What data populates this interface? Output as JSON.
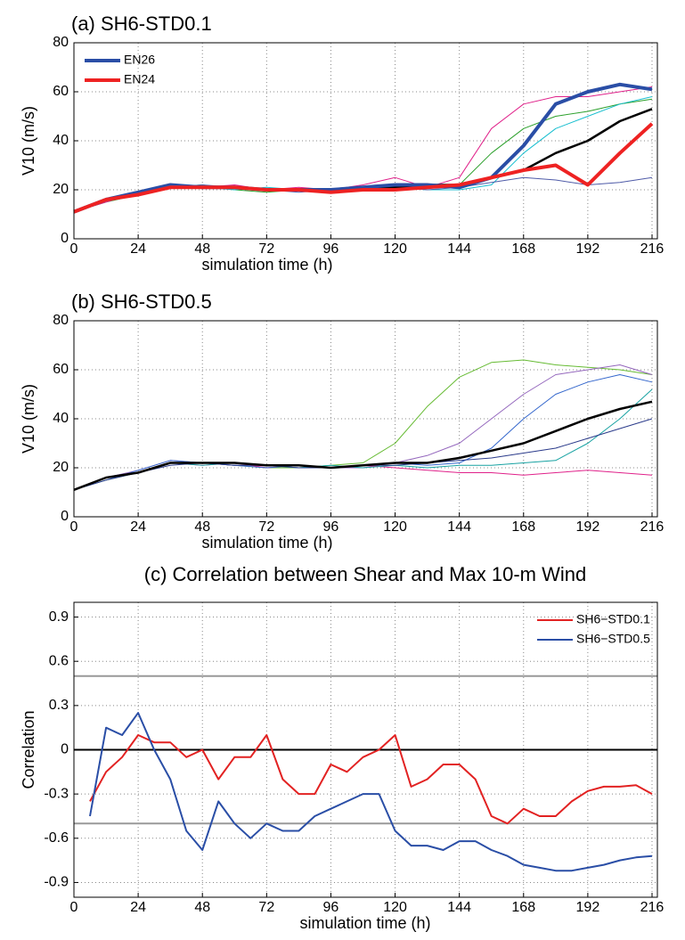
{
  "chart_data": [
    {
      "type": "line",
      "title": "(a) SH6-STD0.1",
      "xlabel": "simulation time (h)",
      "ylabel": "V10 (m/s)",
      "x": [
        0,
        12,
        24,
        36,
        48,
        60,
        72,
        84,
        96,
        108,
        120,
        132,
        144,
        156,
        168,
        180,
        192,
        204,
        216
      ],
      "xlim": [
        0,
        218
      ],
      "xticks": [
        0,
        24,
        48,
        72,
        96,
        120,
        144,
        168,
        192,
        216
      ],
      "ylim": [
        0,
        80
      ],
      "yticks": [
        0,
        20,
        40,
        60,
        80
      ],
      "grid": true,
      "legend": "upper left",
      "series": [
        {
          "color": "#2ca02c",
          "width": 1,
          "values": [
            11,
            15,
            18,
            21,
            22,
            20,
            19,
            20,
            19,
            20,
            22,
            21,
            22,
            35,
            45,
            50,
            52,
            55,
            57
          ]
        },
        {
          "color": "#17becf",
          "width": 1,
          "values": [
            11,
            16,
            19,
            22,
            21,
            20,
            21,
            20,
            19,
            21,
            21,
            20,
            20,
            22,
            35,
            45,
            50,
            55,
            58
          ]
        },
        {
          "color": "#e0218a",
          "width": 1,
          "values": [
            11,
            15,
            19,
            22,
            21,
            22,
            20,
            21,
            20,
            22,
            25,
            21,
            25,
            45,
            55,
            58,
            58,
            60,
            62
          ]
        },
        {
          "color": "#4f5ba8",
          "width": 1,
          "values": [
            11,
            16,
            18,
            21,
            22,
            21,
            20,
            19,
            20,
            21,
            21,
            20,
            21,
            23,
            25,
            24,
            22,
            23,
            25
          ]
        },
        {
          "color": "#000000",
          "width": 2.5,
          "values": [
            11,
            16,
            19,
            22,
            21,
            21,
            20,
            20,
            20,
            21,
            21,
            22,
            22,
            25,
            28,
            35,
            40,
            48,
            53
          ]
        },
        {
          "name": "EN26",
          "color": "#2a4ea6",
          "width": 4,
          "values": [
            11,
            16,
            19,
            22,
            21,
            21,
            20,
            20,
            20,
            21,
            22,
            22,
            21,
            25,
            38,
            55,
            60,
            63,
            61
          ]
        },
        {
          "name": "EN24",
          "color": "#ee2222",
          "width": 4,
          "values": [
            11,
            16,
            18,
            21,
            21,
            21,
            20,
            20,
            19,
            20,
            20,
            21,
            22,
            25,
            28,
            30,
            22,
            35,
            47
          ]
        }
      ]
    },
    {
      "type": "line",
      "title": "(b) SH6-STD0.5",
      "xlabel": "simulation time (h)",
      "ylabel": "V10 (m/s)",
      "x": [
        0,
        12,
        24,
        36,
        48,
        60,
        72,
        84,
        96,
        108,
        120,
        132,
        144,
        156,
        168,
        180,
        192,
        204,
        216
      ],
      "xlim": [
        0,
        218
      ],
      "xticks": [
        0,
        24,
        48,
        72,
        96,
        120,
        144,
        168,
        192,
        216
      ],
      "ylim": [
        0,
        80
      ],
      "yticks": [
        0,
        20,
        40,
        60,
        80
      ],
      "grid": true,
      "series": [
        {
          "color": "#66bb33",
          "width": 1,
          "values": [
            11,
            15,
            18,
            22,
            22,
            21,
            20,
            20,
            21,
            22,
            30,
            45,
            57,
            63,
            64,
            62,
            61,
            60,
            58
          ]
        },
        {
          "color": "#9467bd",
          "width": 1,
          "values": [
            11,
            16,
            19,
            23,
            22,
            21,
            21,
            20,
            20,
            20,
            22,
            25,
            30,
            40,
            50,
            58,
            60,
            62,
            58
          ]
        },
        {
          "color": "#e0218a",
          "width": 1,
          "values": [
            11,
            16,
            18,
            22,
            21,
            22,
            20,
            21,
            20,
            21,
            20,
            19,
            18,
            18,
            17,
            18,
            19,
            18,
            17
          ]
        },
        {
          "color": "#3366cc",
          "width": 1,
          "values": [
            11,
            15,
            19,
            23,
            22,
            21,
            20,
            21,
            20,
            21,
            22,
            21,
            22,
            28,
            40,
            50,
            55,
            58,
            55
          ]
        },
        {
          "color": "#17a2a2",
          "width": 1,
          "values": [
            11,
            16,
            18,
            22,
            21,
            22,
            21,
            20,
            21,
            20,
            21,
            20,
            21,
            21,
            22,
            23,
            30,
            40,
            52
          ]
        },
        {
          "color": "#2a3a8a",
          "width": 1,
          "values": [
            11,
            15,
            18,
            21,
            22,
            21,
            21,
            20,
            20,
            21,
            21,
            22,
            23,
            24,
            26,
            28,
            32,
            36,
            40
          ]
        },
        {
          "color": "#000000",
          "width": 2.5,
          "values": [
            11,
            16,
            18,
            22,
            22,
            22,
            21,
            21,
            20,
            21,
            22,
            22,
            24,
            27,
            30,
            35,
            40,
            44,
            47
          ]
        }
      ]
    },
    {
      "type": "line",
      "title": "(c) Correlation between Shear and Max 10-m Wind",
      "xlabel": "simulation time (h)",
      "ylabel": "Correlation",
      "x": [
        6,
        12,
        18,
        24,
        30,
        36,
        42,
        48,
        54,
        60,
        66,
        72,
        78,
        84,
        90,
        96,
        102,
        108,
        114,
        120,
        126,
        132,
        138,
        144,
        150,
        156,
        162,
        168,
        174,
        180,
        186,
        192,
        198,
        204,
        210,
        216
      ],
      "xlim": [
        0,
        218
      ],
      "xticks": [
        0,
        24,
        48,
        72,
        96,
        120,
        144,
        168,
        192,
        216
      ],
      "ylim": [
        -1.0,
        1.0
      ],
      "yticks": [
        -0.9,
        -0.6,
        -0.3,
        0,
        0.3,
        0.6,
        0.9
      ],
      "grid": true,
      "legend": "upper right",
      "reference_lines": [
        {
          "y": 0,
          "color": "#000000"
        },
        {
          "y": 0.5,
          "color": "#999999"
        },
        {
          "y": -0.5,
          "color": "#999999"
        }
      ],
      "series": [
        {
          "name": "SH6−STD0.1",
          "color": "#e22222",
          "width": 2,
          "values": [
            -0.35,
            -0.15,
            -0.05,
            0.1,
            0.05,
            0.05,
            -0.05,
            0.0,
            -0.2,
            -0.05,
            -0.05,
            0.1,
            -0.2,
            -0.3,
            -0.3,
            -0.1,
            -0.15,
            -0.05,
            0.0,
            0.1,
            -0.25,
            -0.2,
            -0.1,
            -0.1,
            -0.2,
            -0.45,
            -0.5,
            -0.4,
            -0.45,
            -0.45,
            -0.35,
            -0.28,
            -0.25,
            -0.25,
            -0.24,
            -0.3
          ]
        },
        {
          "name": "SH6−STD0.5",
          "color": "#2a4ea6",
          "width": 2,
          "values": [
            -0.45,
            0.15,
            0.1,
            0.25,
            0.0,
            -0.2,
            -0.55,
            -0.68,
            -0.35,
            -0.5,
            -0.6,
            -0.5,
            -0.55,
            -0.55,
            -0.45,
            -0.4,
            -0.35,
            -0.3,
            -0.3,
            -0.55,
            -0.65,
            -0.65,
            -0.68,
            -0.62,
            -0.62,
            -0.68,
            -0.72,
            -0.78,
            -0.8,
            -0.82,
            -0.82,
            -0.8,
            -0.78,
            -0.75,
            -0.73,
            -0.72
          ]
        }
      ]
    }
  ]
}
